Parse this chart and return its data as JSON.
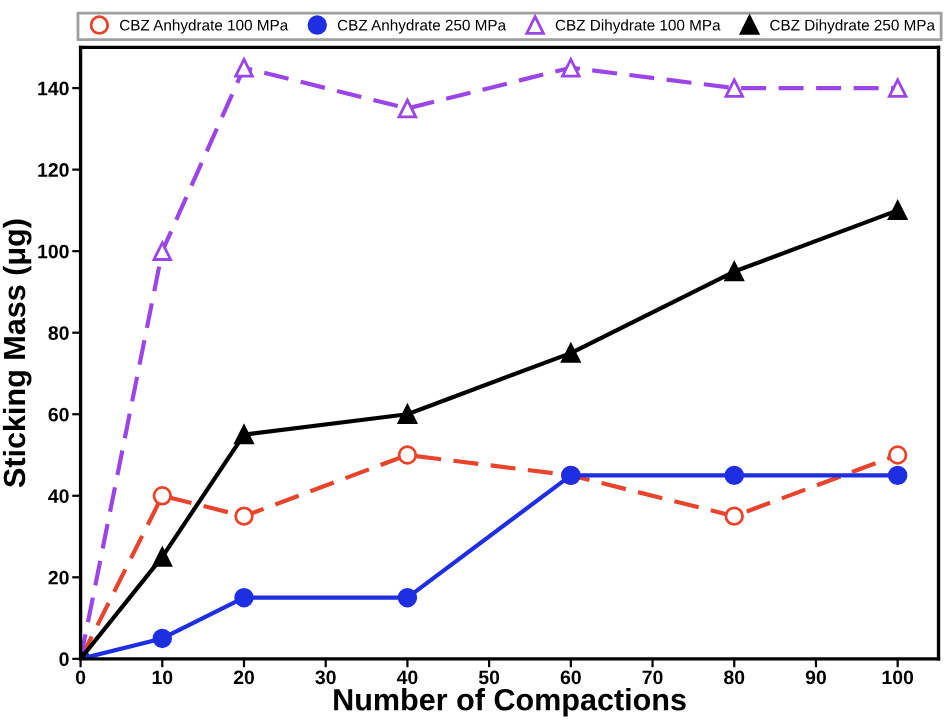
{
  "chart_data": {
    "type": "line",
    "xlabel": "Number of Compactions",
    "ylabel": "Sticking Mass (μg)",
    "x": [
      0,
      10,
      20,
      40,
      60,
      80,
      100
    ],
    "series": [
      {
        "name": "CBZ Anhydrate 100 MPa",
        "color": "#e8432b",
        "values": [
          0,
          40,
          35,
          50,
          45,
          35,
          50
        ],
        "marker": "circle",
        "line_style": "dashed"
      },
      {
        "name": "CBZ Anhydrate 250 MPa",
        "color": "#1f2ee0",
        "values": [
          0,
          5,
          15,
          15,
          45,
          45,
          45
        ],
        "marker": "circle",
        "line_style": "solid"
      },
      {
        "name": "CBZ Dihydrate 100 MPa",
        "color": "#9b45e8",
        "values": [
          0,
          100,
          145,
          135,
          145,
          140,
          140
        ],
        "marker": "triangle",
        "line_style": "dashed"
      },
      {
        "name": "CBZ Dihydrate 250 MPa",
        "color": "#000000",
        "values": [
          0,
          25,
          55,
          60,
          75,
          95,
          110
        ],
        "marker": "triangle",
        "line_style": "solid"
      }
    ],
    "xlim": [
      0,
      105
    ],
    "ylim": [
      0,
      150
    ],
    "xticks": [
      0,
      10,
      20,
      30,
      40,
      50,
      60,
      70,
      80,
      90,
      100
    ],
    "yticks": [
      0,
      20,
      40,
      60,
      80,
      100,
      120,
      140
    ],
    "grid": false,
    "legend": "top"
  }
}
